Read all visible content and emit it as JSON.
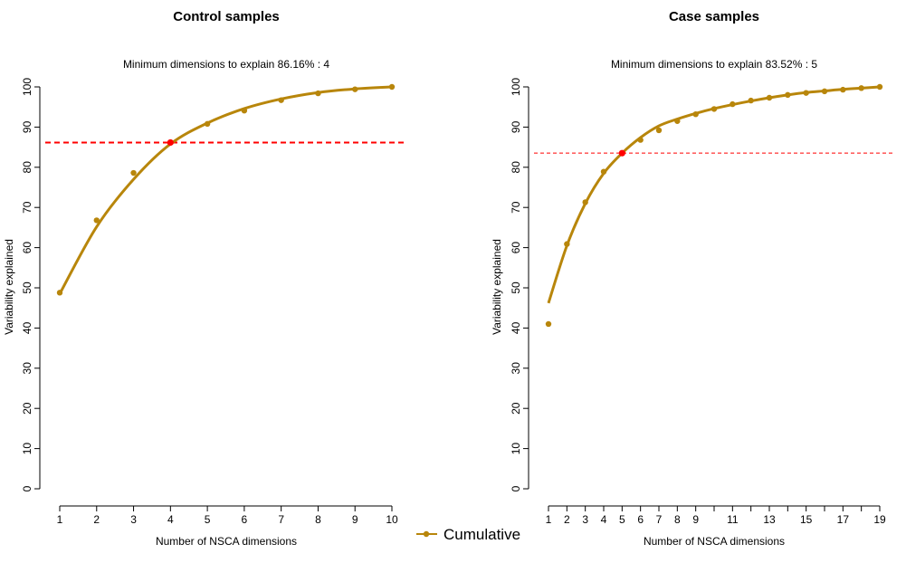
{
  "legend": {
    "label": "Cumulative"
  },
  "colors": {
    "series": "#b8860b",
    "threshold": "#ff0000",
    "highlight": "#ff0000",
    "axis": "#000000"
  },
  "panels": [
    {
      "title": "Control samples",
      "subtitle": "Minimum dimensions to explain 86.16% : 4",
      "xlabel": "Number of NSCA dimensions",
      "ylabel": "Variability explained"
    },
    {
      "title": "Case samples",
      "subtitle": "Minimum dimensions to explain 83.52% : 5",
      "xlabel": "Number of NSCA dimensions",
      "ylabel": "Variability explained"
    }
  ],
  "chart_data": [
    {
      "type": "scatter",
      "title": "Control samples",
      "subtitle": "Minimum dimensions to explain 86.16% : 4",
      "xlabel": "Number of NSCA dimensions",
      "ylabel": "Variability explained",
      "xlim": [
        1,
        10
      ],
      "ylim": [
        0,
        100
      ],
      "x_ticks": [
        1,
        2,
        3,
        4,
        5,
        6,
        7,
        8,
        9,
        10
      ],
      "y_ticks": [
        0,
        10,
        20,
        30,
        40,
        50,
        60,
        70,
        80,
        90,
        100
      ],
      "threshold": 86.16,
      "threshold_style": "thick-dashed",
      "highlight_index": 4,
      "series": [
        {
          "name": "Cumulative",
          "x": [
            1,
            2,
            3,
            4,
            5,
            6,
            7,
            8,
            9,
            10
          ],
          "values": [
            48.8,
            66.8,
            78.6,
            86.16,
            90.8,
            94.1,
            96.7,
            98.4,
            99.4,
            100.0
          ]
        }
      ],
      "fit_curve": {
        "x": [
          1,
          2,
          3,
          4,
          5,
          6,
          7,
          8,
          9,
          10
        ],
        "values": [
          48.5,
          65.2,
          77.0,
          85.8,
          91.0,
          94.6,
          97.0,
          98.6,
          99.5,
          100.0
        ]
      },
      "grid": false,
      "legend_position": "bottom-center"
    },
    {
      "type": "scatter",
      "title": "Case samples",
      "subtitle": "Minimum dimensions to explain 83.52% : 5",
      "xlabel": "Number of NSCA dimensions",
      "ylabel": "Variability explained",
      "xlim": [
        1,
        19
      ],
      "ylim": [
        0,
        100
      ],
      "x_ticks": [
        1,
        2,
        3,
        4,
        5,
        6,
        7,
        8,
        9,
        10,
        11,
        12,
        13,
        14,
        15,
        16,
        17,
        18,
        19
      ],
      "x_tick_labels": [
        1,
        2,
        3,
        4,
        5,
        6,
        7,
        8,
        9,
        11,
        13,
        15,
        17,
        19
      ],
      "y_ticks": [
        0,
        10,
        20,
        30,
        40,
        50,
        60,
        70,
        80,
        90,
        100
      ],
      "threshold": 83.52,
      "threshold_style": "thin-dashed",
      "highlight_index": 5,
      "series": [
        {
          "name": "Cumulative",
          "x": [
            1,
            2,
            3,
            4,
            5,
            6,
            7,
            8,
            9,
            10,
            11,
            12,
            13,
            14,
            15,
            16,
            17,
            18,
            19
          ],
          "values": [
            41.0,
            60.9,
            71.3,
            78.9,
            83.52,
            86.8,
            89.2,
            91.5,
            93.2,
            94.5,
            95.7,
            96.6,
            97.3,
            98.0,
            98.5,
            98.9,
            99.3,
            99.7,
            100.0
          ]
        }
      ],
      "fit_curve": {
        "x": [
          1,
          2,
          3,
          4,
          5,
          6,
          7,
          8,
          9,
          10,
          11,
          12,
          13,
          14,
          15,
          16,
          17,
          18,
          19
        ],
        "values": [
          46.2,
          60.5,
          71.0,
          78.5,
          83.52,
          87.4,
          90.3,
          92.0,
          93.4,
          94.6,
          95.6,
          96.5,
          97.3,
          98.0,
          98.6,
          99.0,
          99.4,
          99.7,
          100.0
        ]
      },
      "grid": false,
      "legend_position": "bottom-center"
    }
  ]
}
